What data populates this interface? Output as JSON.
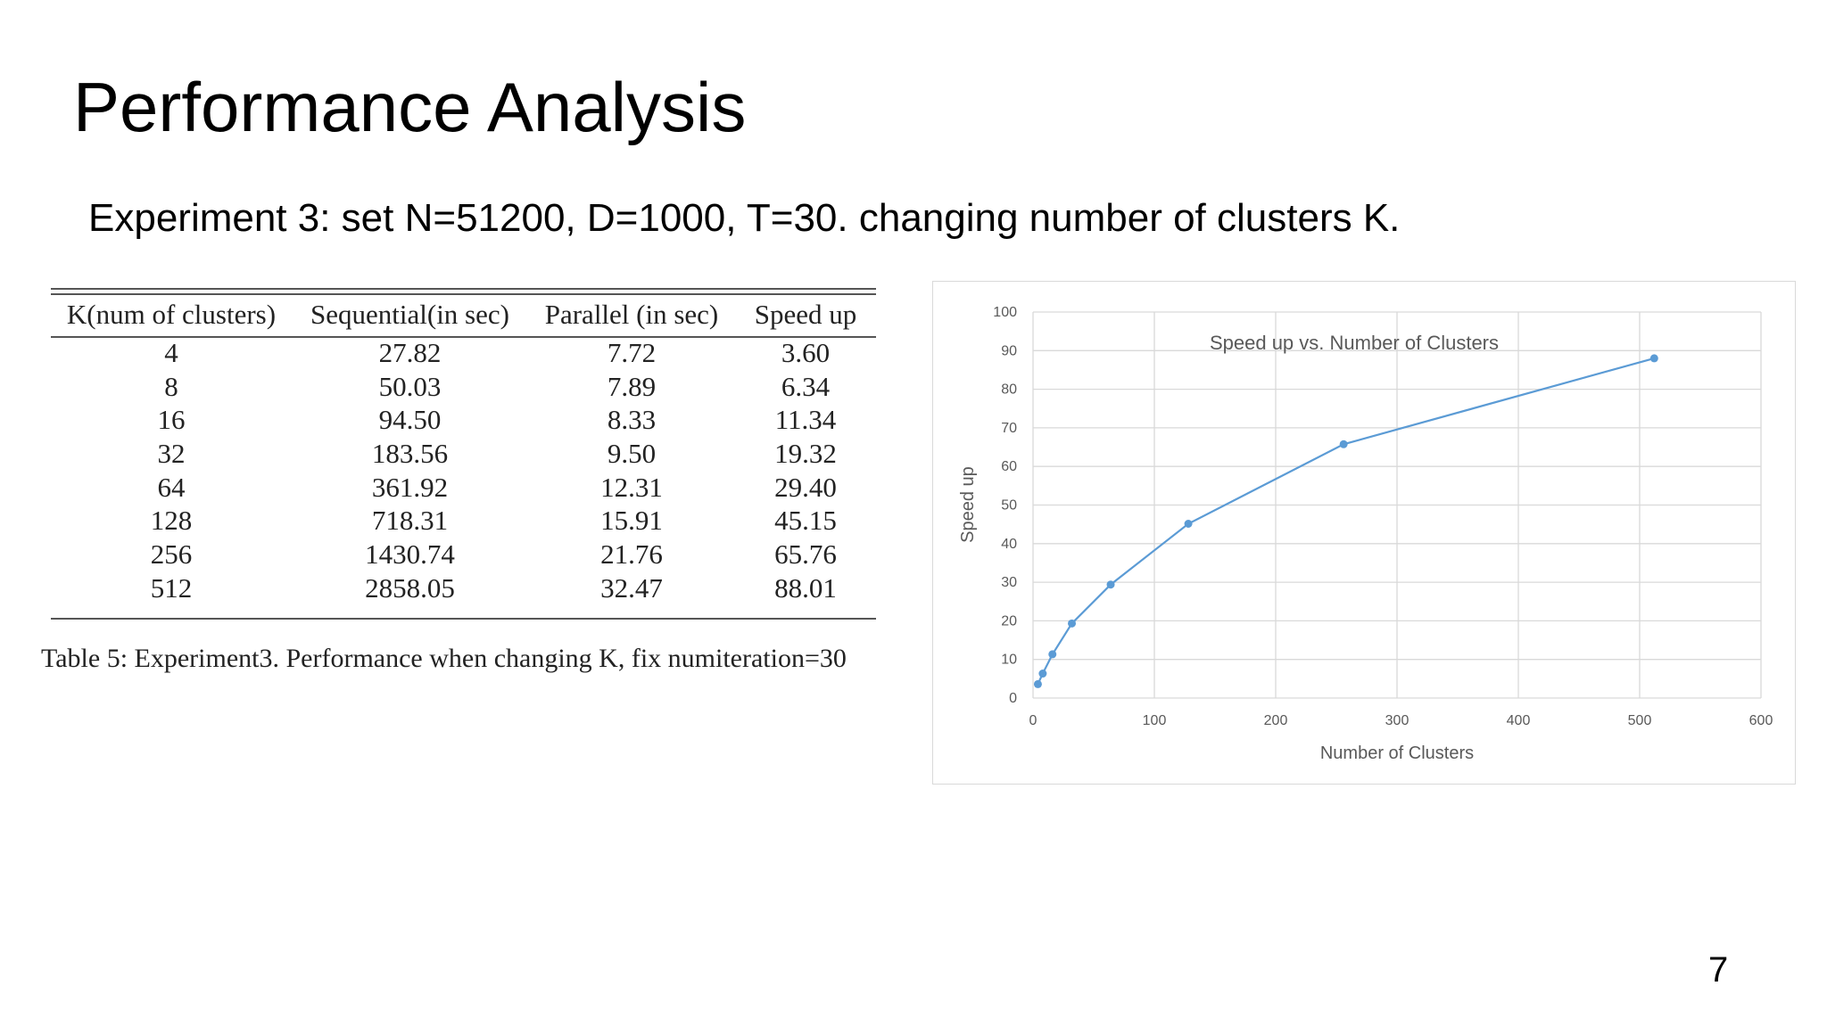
{
  "slide": {
    "title": "Performance Analysis",
    "subtitle": "Experiment 3: set N=51200, D=1000, T=30. changing number of clusters K.",
    "page_number": "7"
  },
  "table": {
    "headers": [
      "K(num of clusters)",
      "Sequential(in sec)",
      "Parallel (in sec)",
      "Speed up"
    ],
    "rows": [
      [
        "4",
        "27.82",
        "7.72",
        "3.60"
      ],
      [
        "8",
        "50.03",
        "7.89",
        "6.34"
      ],
      [
        "16",
        "94.50",
        "8.33",
        "11.34"
      ],
      [
        "32",
        "183.56",
        "9.50",
        "19.32"
      ],
      [
        "64",
        "361.92",
        "12.31",
        "29.40"
      ],
      [
        "128",
        "718.31",
        "15.91",
        "45.15"
      ],
      [
        "256",
        "1430.74",
        "21.76",
        "65.76"
      ],
      [
        "512",
        "2858.05",
        "32.47",
        "88.01"
      ]
    ],
    "caption": "Table 5: Experiment3. Performance when changing K, fix numiteration=30"
  },
  "chart_data": {
    "type": "line",
    "title": "Speed up vs. Number of Clusters",
    "xlabel": "Number of Clusters",
    "ylabel": "Speed up",
    "xlim": [
      0,
      600
    ],
    "ylim": [
      0,
      100
    ],
    "xticks": [
      0,
      100,
      200,
      300,
      400,
      500,
      600
    ],
    "yticks": [
      0,
      10,
      20,
      30,
      40,
      50,
      60,
      70,
      80,
      90,
      100
    ],
    "grid": true,
    "color": "#5b9bd5",
    "x": [
      4,
      8,
      16,
      32,
      64,
      128,
      256,
      512
    ],
    "y": [
      3.6,
      6.34,
      11.34,
      19.32,
      29.4,
      45.15,
      65.76,
      88.01
    ]
  }
}
